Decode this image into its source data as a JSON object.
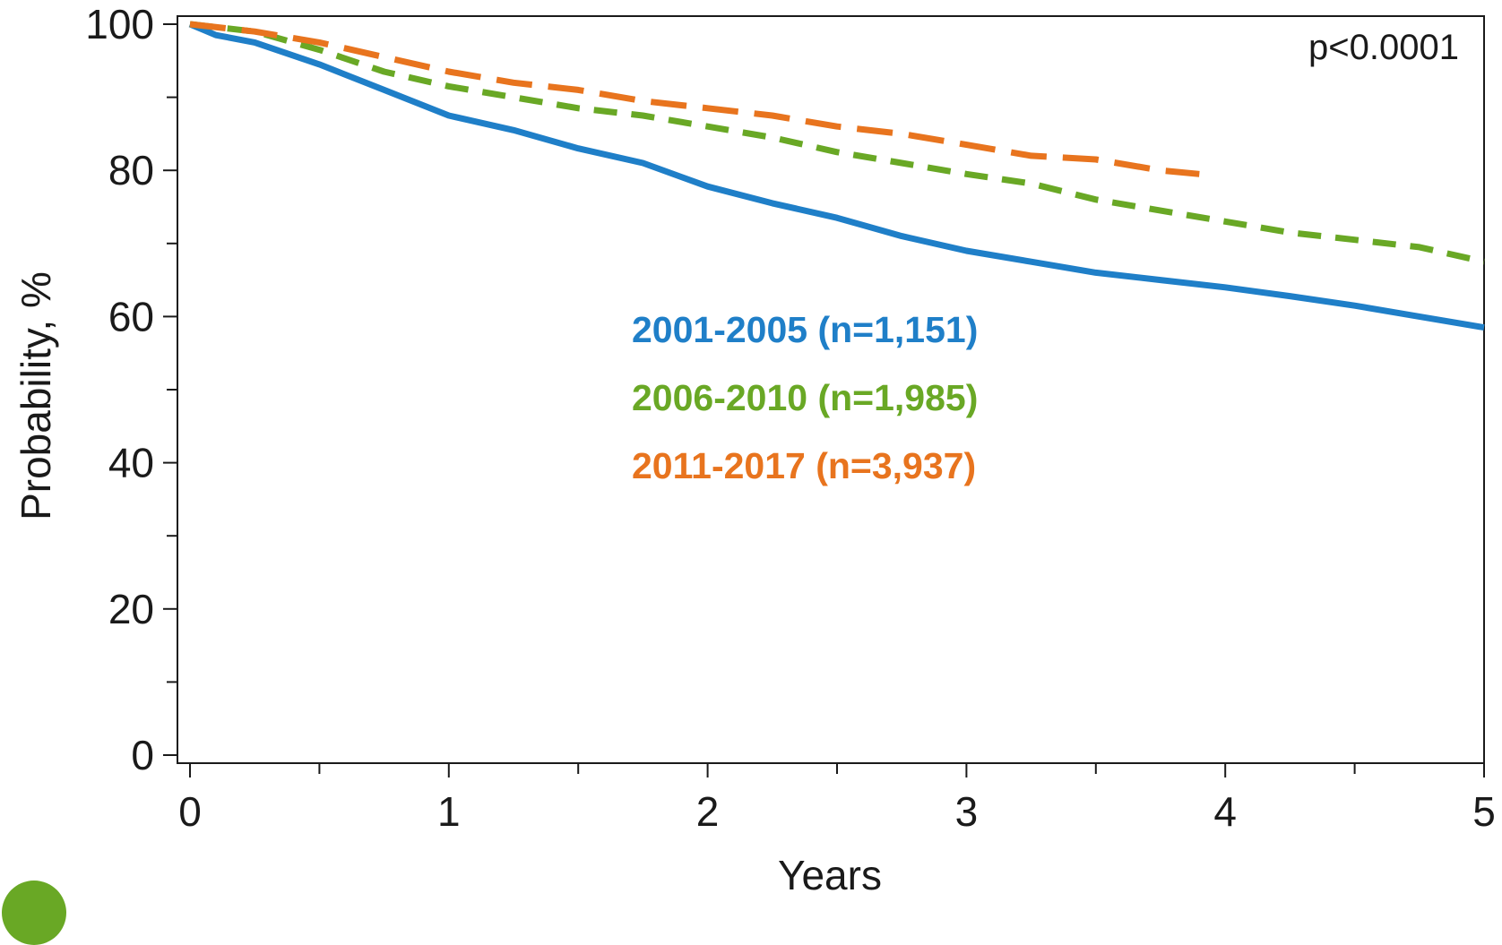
{
  "colors": {
    "series_2001_2005": "#1f7fc8",
    "series_2006_2010": "#69a825",
    "series_2011_2017": "#e8741e",
    "axis": "#1a1a1a",
    "corner_logo": "#69a825"
  },
  "chart_data": {
    "type": "line",
    "subtype": "kaplan-meier survival curve",
    "title": "",
    "xlabel": "Years",
    "ylabel": "Probability, %",
    "xlim": [
      0,
      5
    ],
    "ylim": [
      0,
      100
    ],
    "x_ticks": [
      "0",
      "1",
      "2",
      "3",
      "4",
      "5"
    ],
    "y_ticks": [
      "0",
      "20",
      "40",
      "60",
      "80",
      "100"
    ],
    "x_minor_ticks": [
      0.5,
      1.5,
      2.5,
      3.5,
      4.5
    ],
    "y_minor_ticks": [
      10,
      30,
      50,
      70,
      90
    ],
    "grid": false,
    "annotation": "p<0.0001",
    "legend_position": "center",
    "series": [
      {
        "name": "2001-2005 (n=1,151)",
        "style": "solid",
        "x": [
          0,
          0.1,
          0.25,
          0.5,
          0.75,
          1.0,
          1.25,
          1.5,
          1.75,
          2.0,
          2.25,
          2.5,
          2.75,
          3.0,
          3.25,
          3.5,
          3.75,
          4.0,
          4.25,
          4.5,
          4.75,
          5.0
        ],
        "y": [
          100,
          98.5,
          97.5,
          94.5,
          91,
          87.5,
          85.5,
          83,
          81,
          77.8,
          75.5,
          73.5,
          71,
          69,
          67.5,
          66,
          65,
          64,
          62.8,
          61.5,
          60,
          58.5
        ]
      },
      {
        "name": "2006-2010 (n=1,985)",
        "style": "dashed",
        "x": [
          0,
          0.25,
          0.5,
          0.75,
          1.0,
          1.25,
          1.5,
          1.75,
          2.0,
          2.25,
          2.5,
          2.75,
          3.0,
          3.25,
          3.5,
          3.75,
          4.0,
          4.25,
          4.5,
          4.75,
          5.0
        ],
        "y": [
          100,
          99,
          96.5,
          93.5,
          91.5,
          90,
          88.5,
          87.5,
          86,
          84.5,
          82.5,
          81,
          79.5,
          78.2,
          76,
          74.5,
          73,
          71.5,
          70.5,
          69.5,
          67.5
        ]
      },
      {
        "name": "2011-2017 (n=3,937)",
        "style": "dashed",
        "x": [
          0,
          0.25,
          0.5,
          0.75,
          1.0,
          1.25,
          1.5,
          1.75,
          2.0,
          2.25,
          2.5,
          2.75,
          3.0,
          3.25,
          3.5,
          3.75,
          3.9
        ],
        "y": [
          100,
          99,
          97.5,
          95.5,
          93.5,
          92,
          91,
          89.5,
          88.5,
          87.5,
          86,
          85,
          83.5,
          82,
          81.5,
          80,
          79.5
        ]
      }
    ]
  }
}
